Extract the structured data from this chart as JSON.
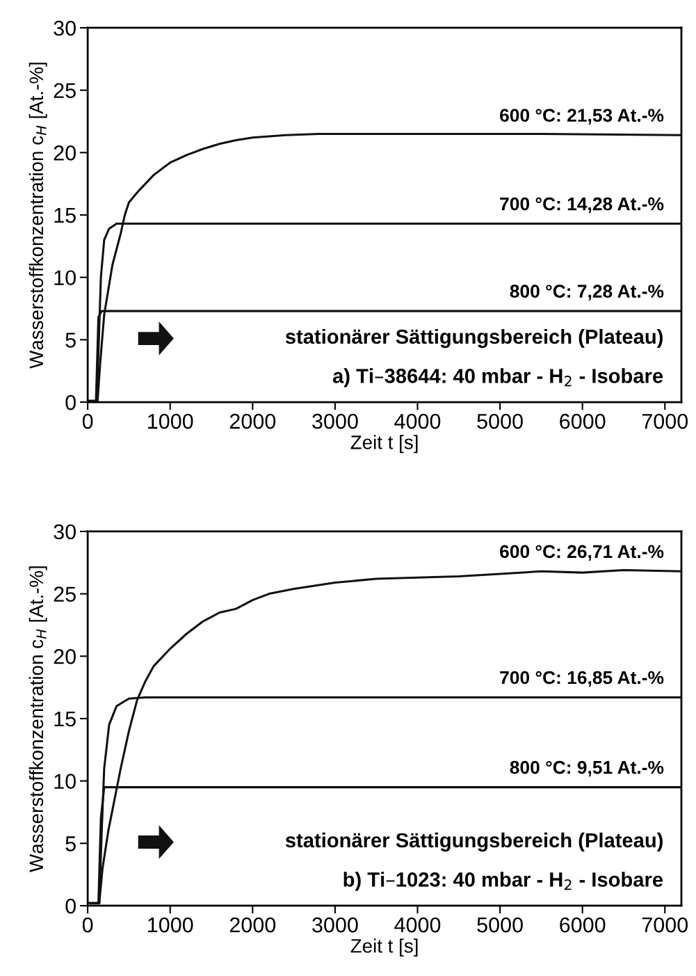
{
  "chart_data": [
    {
      "type": "line",
      "xlabel": "Zeit t [s]",
      "ylabel": "Wasserstoffkonzentration c$_{H}$ [At.-%]",
      "xlim": [
        0,
        7200
      ],
      "ylim": [
        0,
        30
      ],
      "xticks": [
        0,
        1000,
        2000,
        3000,
        4000,
        5000,
        6000,
        7000
      ],
      "yticks": [
        0,
        5,
        10,
        15,
        20,
        25,
        30
      ],
      "grid": false,
      "legend": false,
      "marker": "none",
      "line_style": "solid",
      "annotations": [
        "stationärer Sättigungsbereich (Plateau)",
        "a) Ti–38644: 40 mbar - H$_{2}$ - Isobare"
      ],
      "series": [
        {
          "name": "600 °C: 21,53 At.-%",
          "color": "#111111",
          "x": [
            0,
            120,
            150,
            200,
            300,
            400,
            450,
            500,
            600,
            700,
            800,
            900,
            1000,
            1200,
            1400,
            1600,
            1800,
            2000,
            2400,
            2800,
            3500,
            4500,
            5500,
            7200
          ],
          "values": [
            0.1,
            0.1,
            3,
            7,
            11,
            13.5,
            15,
            16,
            16.8,
            17.5,
            18.2,
            18.7,
            19.2,
            19.8,
            20.3,
            20.7,
            21.0,
            21.2,
            21.4,
            21.5,
            21.5,
            21.5,
            21.5,
            21.4
          ]
        },
        {
          "name": "700 °C: 14,28 At.-%",
          "color": "#111111",
          "x": [
            0,
            110,
            130,
            160,
            200,
            260,
            350,
            600,
            7200
          ],
          "values": [
            0.1,
            0.1,
            4,
            10,
            13,
            13.9,
            14.3,
            14.3,
            14.3
          ]
        },
        {
          "name": "800 °C: 7,28 At.-%",
          "color": "#111111",
          "x": [
            0,
            100,
            130,
            170,
            7200
          ],
          "values": [
            0,
            0,
            6.8,
            7.3,
            7.3
          ]
        }
      ]
    },
    {
      "type": "line",
      "xlabel": "Zeit t [s]",
      "ylabel": "Wasserstoffkonzentration c$_{H}$ [At.-%]",
      "xlim": [
        0,
        7200
      ],
      "ylim": [
        0,
        30
      ],
      "xticks": [
        0,
        1000,
        2000,
        3000,
        4000,
        5000,
        6000,
        7000
      ],
      "yticks": [
        0,
        5,
        10,
        15,
        20,
        25,
        30
      ],
      "grid": false,
      "legend": false,
      "marker": "none",
      "line_style": "solid",
      "annotations": [
        "stationärer Sättigungsbereich (Plateau)",
        "b) Ti–1023: 40 mbar - H$_{2}$ - Isobare"
      ],
      "series": [
        {
          "name": "600 °C: 26,71 At.-%",
          "color": "#111111",
          "x": [
            0,
            140,
            180,
            250,
            400,
            500,
            600,
            700,
            800,
            1000,
            1200,
            1400,
            1600,
            1800,
            2000,
            2200,
            2500,
            3000,
            3500,
            4000,
            4500,
            5000,
            5500,
            6000,
            6500,
            7200
          ],
          "values": [
            0.2,
            0.2,
            3,
            6,
            11,
            14,
            16.5,
            18,
            19.2,
            20.6,
            21.8,
            22.8,
            23.5,
            23.8,
            24.5,
            25,
            25.4,
            25.9,
            26.2,
            26.3,
            26.4,
            26.6,
            26.8,
            26.7,
            26.9,
            26.8
          ]
        },
        {
          "name": "700 °C: 16,85 At.-%",
          "color": "#111111",
          "x": [
            0,
            140,
            170,
            200,
            260,
            350,
            500,
            700,
            7200
          ],
          "values": [
            0.2,
            0.2,
            6,
            11,
            14.5,
            16,
            16.6,
            16.7,
            16.7
          ]
        },
        {
          "name": "800 °C: 9,51 At.-%",
          "color": "#111111",
          "x": [
            0,
            130,
            160,
            200,
            7200
          ],
          "values": [
            0.2,
            0.2,
            7,
            9.5,
            9.5
          ]
        }
      ]
    }
  ]
}
